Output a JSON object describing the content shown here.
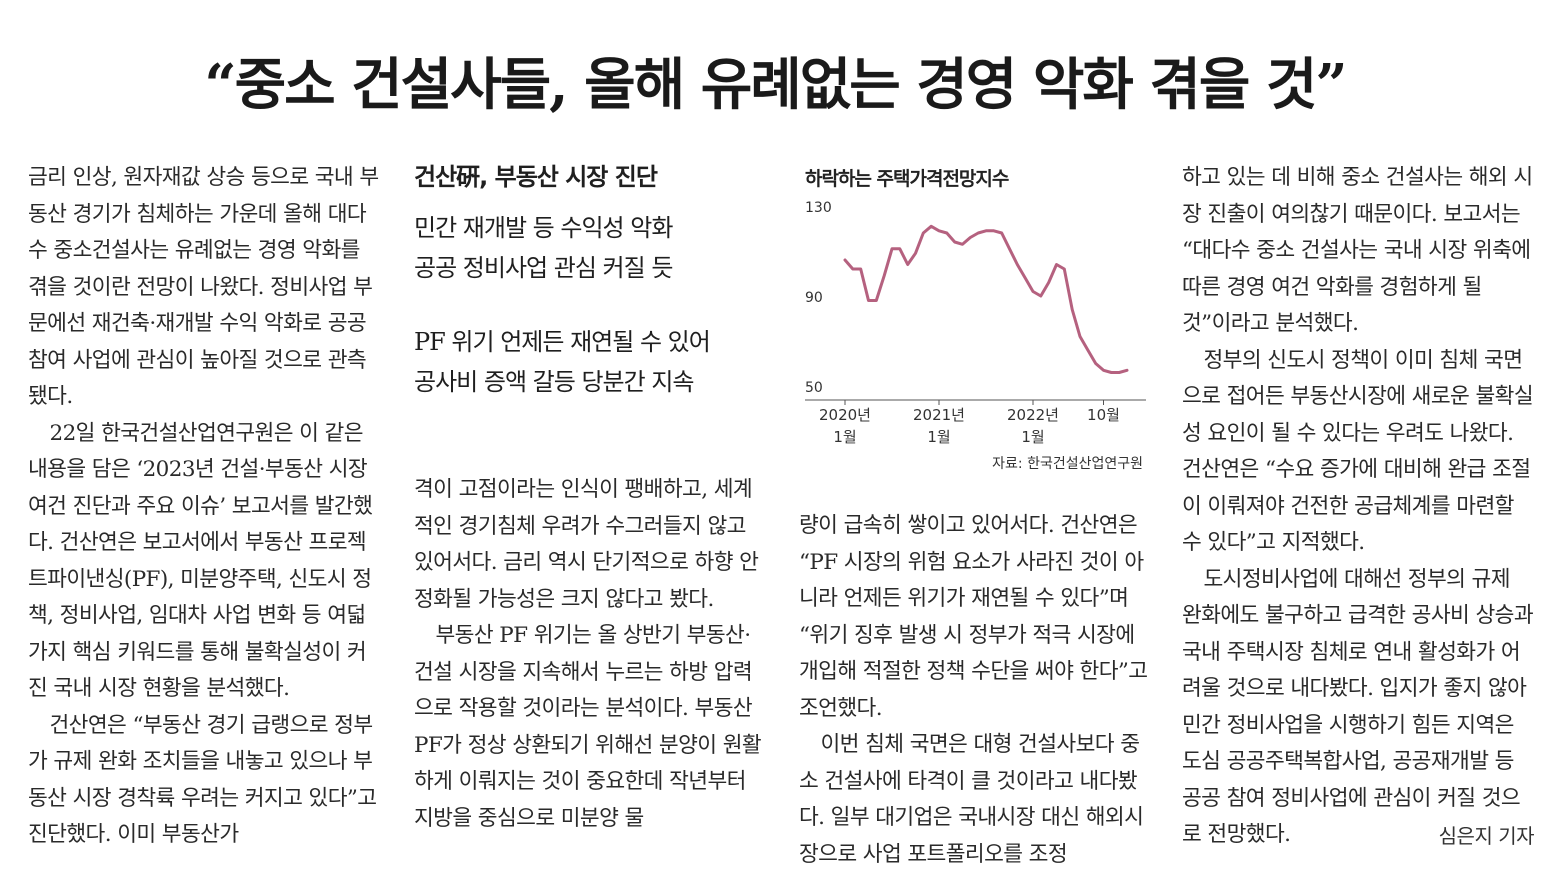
{
  "headline": "“중소 건설사들, 올해 유례없는 경영 악화 겪을 것”",
  "subhead": {
    "kicker": "건산硏, 부동산 시장 진단",
    "lines_a": [
      "민간 재개발 등 수익성 악화",
      "공공 정비사업 관심 커질 듯"
    ],
    "lines_b": [
      "PF 위기 언제든 재연될 수 있어",
      "공사비 증액 갈등 당분간 지속"
    ]
  },
  "col1": [
    "금리 인상, 원자재값 상승 등으로 국내 부동산 경기가 침체하는 가운데 올해 대다수 중소건설사는 유례없는 경영 악화를 겪을 것이란 전망이 나왔다. 정비사업 부문에선 재건축·재개발 수익 악화로 공공 참여 사업에 관심이 높아질 것으로 관측됐다.",
    "22일 한국건설산업연구원은 이 같은 내용을 담은 ‘2023년 건설·부동산 시장 여건 진단과 주요 이슈’ 보고서를 발간했다. 건산연은 보고서에서 부동산 프로젝트파이낸싱(PF), 미분양주택, 신도시 정책, 정비사업, 임대차 사업 변화 등 여덟 가지 핵심 키워드를 통해 불확실성이 커진 국내 시장 현황을 분석했다.",
    "건산연은 “부동산 경기 급랭으로 정부가 규제 완화 조치들을 내놓고 있으나 부동산 시장 경착륙 우려는 커지고 있다”고 진단했다. 이미 부동산가"
  ],
  "col2": [
    "격이 고점이라는 인식이 팽배하고, 세계적인 경기침체 우려가 수그러들지 않고 있어서다. 금리 역시 단기적으로 하향 안정화될 가능성은 크지 않다고 봤다.",
    "부동산 PF 위기는 올 상반기 부동산·건설 시장을 지속해서 누르는 하방 압력으로 작용할 것이라는 분석이다. 부동산 PF가 정상 상환되기 위해선 분양이 원활하게 이뤄지는 것이 중요한데 작년부터 지방을 중심으로 미분양 물"
  ],
  "col3": [
    "량이 급속히 쌓이고 있어서다. 건산연은 “PF 시장의 위험 요소가 사라진 것이 아니라 언제든 위기가 재연될 수 있다”며 “위기 징후 발생 시 정부가 적극 시장에 개입해 적절한 정책 수단을 써야 한다”고 조언했다.",
    "이번 침체 국면은 대형 건설사보다 중소 건설사에 타격이 클 것이라고 내다봤다. 일부 대기업은 국내시장 대신 해외시장으로 사업 포트폴리오를 조정"
  ],
  "col4": [
    "하고 있는 데 비해 중소 건설사는 해외 시장 진출이 여의찮기 때문이다. 보고서는 “대다수 중소 건설사는 국내 시장 위축에 따른 경영 여건 악화를 경험하게 될 것”이라고 분석했다.",
    "정부의 신도시 정책이 이미 침체 국면으로 접어든 부동산시장에 새로운 불확실성 요인이 될 수 있다는 우려도 나왔다. 건산연은 “수요 증가에 대비해 완급 조절이 이뤄져야 건전한 공급체계를 마련할 수 있다”고 지적했다.",
    "도시정비사업에 대해선 정부의 규제 완화에도 불구하고 급격한 공사비 상승과 국내 주택시장 침체로 연내 활성화가 어려울 것으로 내다봤다. 입지가 좋지 않아 민간 정비사업을 시행하기 힘든 지역은 도심 공공주택복합사업, 공공재개발 등 공공 참여 정비사업에 관심이 커질 것으로 전망했다."
  ],
  "byline": "심은지 기자",
  "chart_data": {
    "type": "line",
    "title": "하락하는 주택가격전망지수",
    "source": "자료: 한국건설산업연구원",
    "ylim": [
      50,
      130
    ],
    "yticks": [
      "130",
      "90",
      "50"
    ],
    "xticks": [
      {
        "label1": "2020년",
        "label2": "1월",
        "index": 0
      },
      {
        "label1": "2021년",
        "label2": "1월",
        "index": 12
      },
      {
        "label1": "2022년",
        "label2": "1월",
        "index": 24
      },
      {
        "label1": "10월",
        "label2": "",
        "index": 33
      }
    ],
    "line_color": "#b5617f",
    "x": [
      "2020-01",
      "2020-02",
      "2020-03",
      "2020-04",
      "2020-05",
      "2020-06",
      "2020-07",
      "2020-08",
      "2020-09",
      "2020-10",
      "2020-11",
      "2020-12",
      "2021-01",
      "2021-02",
      "2021-03",
      "2021-04",
      "2021-05",
      "2021-06",
      "2021-07",
      "2021-08",
      "2021-09",
      "2021-10",
      "2021-11",
      "2021-12",
      "2022-01",
      "2022-02",
      "2022-03",
      "2022-04",
      "2022-05",
      "2022-06",
      "2022-07",
      "2022-08",
      "2022-09",
      "2022-10",
      "2022-11",
      "2022-12",
      "2023-01"
    ],
    "values": [
      106,
      102,
      102,
      88,
      88,
      99,
      111,
      111,
      104,
      109,
      118,
      121,
      119,
      118,
      114,
      113,
      116,
      118,
      119,
      119,
      118,
      111,
      104,
      98,
      92,
      90,
      96,
      104,
      102,
      84,
      72,
      66,
      60,
      57,
      56,
      56,
      57
    ]
  }
}
